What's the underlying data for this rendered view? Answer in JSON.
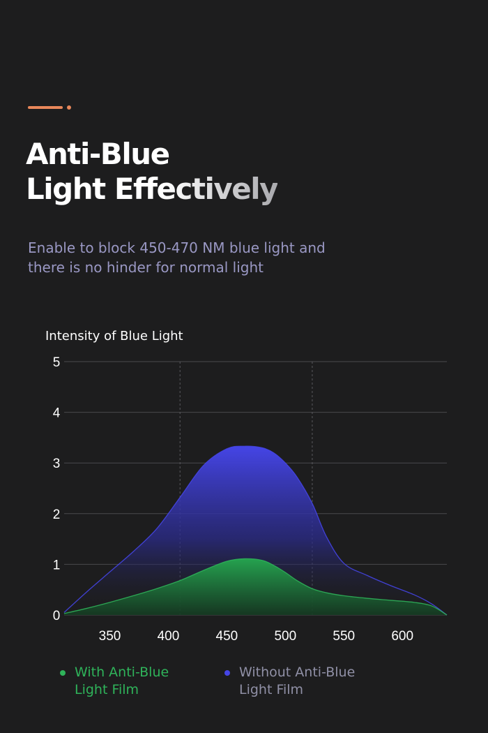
{
  "header": {
    "title_line1": "Anti-Blue",
    "title_line2": "Light Effectively",
    "subtitle_line1": "Enable to block 450-470 NM blue light and",
    "subtitle_line2": "there is no hinder for normal light"
  },
  "colors": {
    "accent": "#e8875a",
    "series_with": "#2fb35a",
    "series_without": "#4545e6",
    "background": "#1d1d1e"
  },
  "chart_data": {
    "type": "area",
    "title": "",
    "ylabel": "Intensity of Blue Light",
    "xlabel": "",
    "xlim": [
      311,
      638
    ],
    "ylim": [
      0,
      5
    ],
    "x_ticks": [
      350,
      400,
      450,
      500,
      550,
      600
    ],
    "y_ticks": [
      0,
      1,
      2,
      3,
      4,
      5
    ],
    "vertical_guides": [
      410,
      523
    ],
    "grid": true,
    "legend_position": "bottom",
    "x": [
      311,
      330,
      350,
      370,
      390,
      410,
      430,
      450,
      465,
      480,
      490,
      500,
      510,
      523,
      535,
      550,
      570,
      590,
      610,
      625,
      638
    ],
    "series": [
      {
        "name": "With Anti-Blue Light Film",
        "color": "#2fb35a",
        "values": [
          0.03,
          0.13,
          0.25,
          0.38,
          0.52,
          0.68,
          0.88,
          1.06,
          1.11,
          1.08,
          0.98,
          0.84,
          0.68,
          0.52,
          0.44,
          0.38,
          0.33,
          0.29,
          0.25,
          0.18,
          0.0
        ]
      },
      {
        "name": "Without Anti-Blue Light Film",
        "color": "#4545e6",
        "values": [
          0.05,
          0.45,
          0.85,
          1.25,
          1.7,
          2.32,
          2.95,
          3.28,
          3.33,
          3.3,
          3.2,
          3.0,
          2.72,
          2.2,
          1.55,
          1.02,
          0.78,
          0.58,
          0.4,
          0.22,
          0.0
        ]
      }
    ]
  },
  "legend": {
    "with_line1": "With Anti-Blue",
    "with_line2": "Light Film",
    "without_line1": "Without Anti-Blue",
    "without_line2": "Light Film"
  }
}
